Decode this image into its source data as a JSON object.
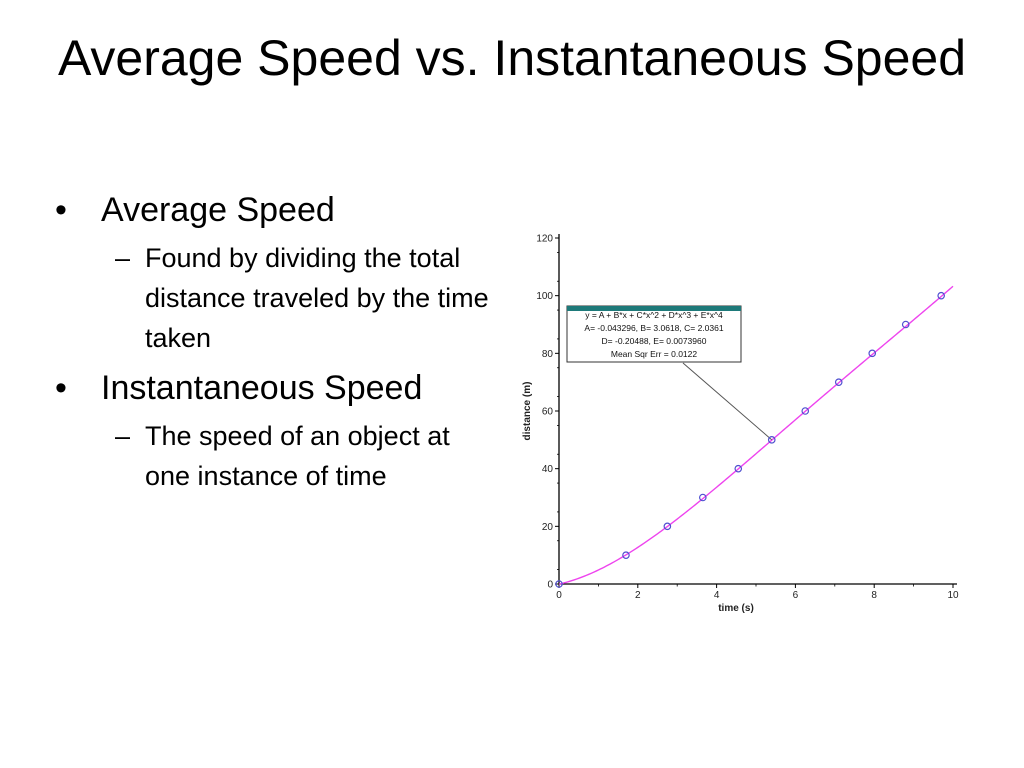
{
  "slide": {
    "title": "Average Speed vs. Instantaneous Speed",
    "bullets": [
      {
        "text": "Average Speed",
        "sub": "Found by dividing the total distance traveled by the time taken"
      },
      {
        "text": "Instantaneous Speed",
        "sub": "The speed of an object at one instance of time"
      }
    ]
  },
  "chart_data": {
    "type": "scatter",
    "xlabel": "time (s)",
    "ylabel": "distance (m)",
    "xlim": [
      0,
      10
    ],
    "ylim": [
      0,
      120
    ],
    "xticks": [
      0,
      2,
      4,
      6,
      8,
      10
    ],
    "yticks": [
      0,
      20,
      40,
      60,
      80,
      100,
      120
    ],
    "points": {
      "x": [
        0,
        1.7,
        2.75,
        3.65,
        4.55,
        5.4,
        6.25,
        7.1,
        7.95,
        8.8,
        9.7
      ],
      "y": [
        0,
        10,
        20,
        30,
        40,
        50,
        60,
        70,
        80,
        90,
        100
      ]
    },
    "fit": {
      "lines": [
        "y = A + B*x + C*x^2 + D*x^3 + E*x^4",
        "A= -0.043296,  B= 3.0618,  C= 2.0361",
        "D= -0.20488,  E= 0.0073960",
        "Mean Sqr Err = 0.0122"
      ],
      "A": -0.043296,
      "B": 3.0618,
      "C": 2.0361,
      "D": -0.20488,
      "E": 0.007396
    },
    "colors": {
      "fit_line": "#ee44ee",
      "points": "#4f4fd0",
      "box_header": "#1e7a7a"
    },
    "grid": false
  }
}
